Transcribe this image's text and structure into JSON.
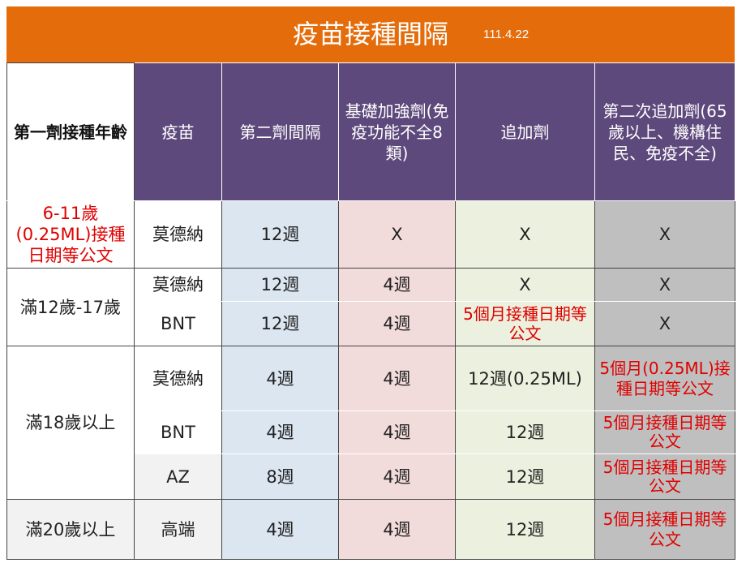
{
  "title": {
    "main": "疫苗接種間隔",
    "date": "111.4.22"
  },
  "headers": {
    "age": "第一劑接種年齡",
    "vaccine": "疫苗",
    "second_dose": "第二劑間隔",
    "basic_booster": "基礎加強劑(免疫功能不全8類)",
    "booster": "追加劑",
    "second_booster": "第二次追加劑(65歲以上、機構住民、免疫不全)"
  },
  "rows": [
    {
      "age": "6-11歲(0.25ML)接種日期等公文",
      "vaccine": "莫德納",
      "second_dose": "12週",
      "basic_booster": "X",
      "booster": "X",
      "second_booster": "X"
    },
    {
      "age": "滿12歲-17歲",
      "vaccine": "莫德納",
      "second_dose": "12週",
      "basic_booster": "4週",
      "booster": "X",
      "second_booster": "X"
    },
    {
      "vaccine": "BNT",
      "second_dose": "12週",
      "basic_booster": "4週",
      "booster": "5個月接種日期等公文",
      "second_booster": "X"
    },
    {
      "age": "滿18歲以上",
      "vaccine": "莫德納",
      "second_dose": "4週",
      "basic_booster": "4週",
      "booster": "12週(0.25ML)",
      "second_booster": "5個月(0.25ML)接種日期等公文"
    },
    {
      "vaccine": "BNT",
      "second_dose": "4週",
      "basic_booster": "4週",
      "booster": "12週",
      "second_booster": "5個月接種日期等公文"
    },
    {
      "vaccine": "AZ",
      "second_dose": "8週",
      "basic_booster": "4週",
      "booster": "12週",
      "second_booster": "5個月接種日期等公文"
    },
    {
      "age": "滿20歲以上",
      "vaccine": "高端",
      "second_dose": "4週",
      "basic_booster": "4週",
      "booster": "12週",
      "second_booster": "5個月接種日期等公文"
    }
  ],
  "colors": {
    "title_bar": "#E46C0A",
    "header_bg": "#5E497C",
    "second_dose_col": "#DCE6F1",
    "basic_booster_col": "#F2DCDB",
    "booster_col": "#EBF1DE",
    "second_booster_col": "#BFBFBF",
    "highlight_text": "#E00000"
  }
}
